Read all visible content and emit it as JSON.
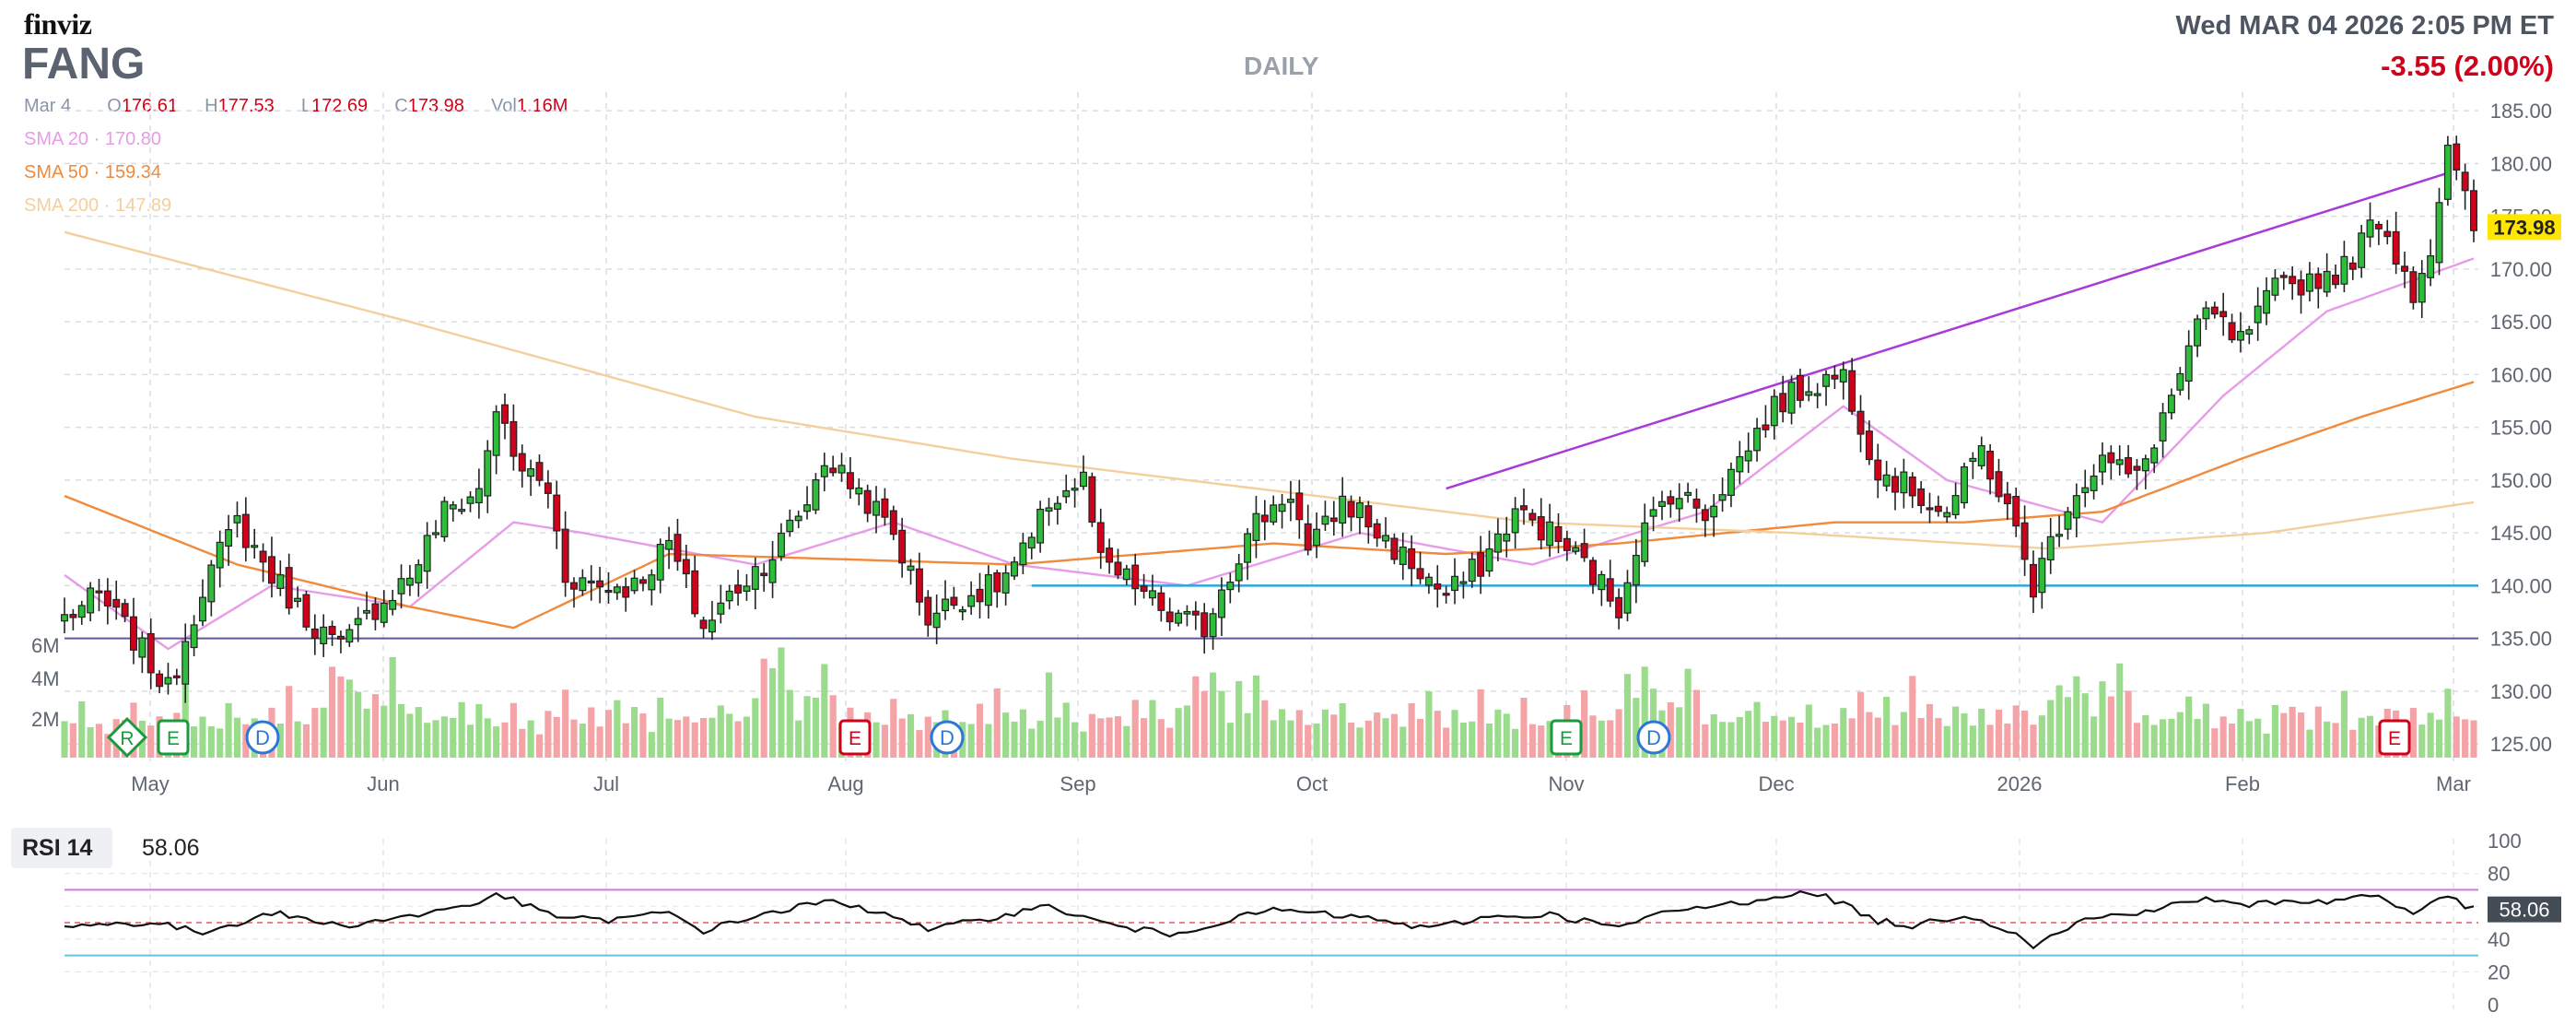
{
  "header": {
    "logo": "finviz",
    "ticker": "FANG",
    "timeframe": "DAILY",
    "datetime": "Wed MAR 04 2026 2:05 PM ET",
    "change": "-3.55 (2.00%)"
  },
  "ohlc": {
    "date": "Mar 4",
    "open_label": "O",
    "open": "176.61",
    "high_label": "H",
    "high": "177.53",
    "low_label": "L",
    "low": "172.69",
    "close_label": "C",
    "close": "173.98",
    "vol_label": "Vol",
    "volume": "1.16M"
  },
  "sma_legend": [
    {
      "label": "SMA 20",
      "value": "170.80",
      "color": "#e79be8"
    },
    {
      "label": "SMA 50",
      "value": "159.34",
      "color": "#f08a3c"
    },
    {
      "label": "SMA 200",
      "value": "147.89",
      "color": "#f4cf9c"
    }
  ],
  "rsi": {
    "label": "RSI 14",
    "value": "58.06"
  },
  "colors": {
    "up": "#2dbd3a",
    "down": "#d0021b",
    "vol_up": "#9bdc8c",
    "vol_down": "#f4a3a6",
    "trendline": "#a93ad8",
    "support": "#2aa6dd",
    "level": "#5f5a97",
    "price_tag": "#ffe600"
  },
  "chart_data": [
    {
      "type": "candlestick",
      "title": "FANG",
      "x_tick_labels": [
        "May",
        "Jun",
        "Jul",
        "Aug",
        "Sep",
        "Oct",
        "Nov",
        "Dec",
        "2026",
        "Feb",
        "Mar"
      ],
      "y_tick_labels": [
        "125.00",
        "130.00",
        "135.00",
        "140.00",
        "145.00",
        "150.00",
        "155.00",
        "160.00",
        "165.00",
        "170.00",
        "175.00",
        "180.00",
        "185.00"
      ],
      "ylim": [
        123,
        186.5
      ],
      "last_price": "173.98",
      "volume_tick_labels": [
        "6M",
        "4M",
        "2M"
      ],
      "price_anchors": [
        [
          0,
          137
        ],
        [
          4,
          139
        ],
        [
          8,
          135
        ],
        [
          12,
          130
        ],
        [
          16,
          140
        ],
        [
          20,
          146
        ],
        [
          24,
          141
        ],
        [
          28,
          137
        ],
        [
          32,
          134
        ],
        [
          36,
          138
        ],
        [
          40,
          141
        ],
        [
          44,
          147
        ],
        [
          48,
          149
        ],
        [
          50,
          157
        ],
        [
          52,
          152
        ],
        [
          56,
          149
        ],
        [
          58,
          141
        ],
        [
          62,
          140
        ],
        [
          66,
          140
        ],
        [
          70,
          144
        ],
        [
          74,
          136
        ],
        [
          78,
          140
        ],
        [
          82,
          143
        ],
        [
          86,
          148
        ],
        [
          88,
          152
        ],
        [
          92,
          149
        ],
        [
          96,
          145
        ],
        [
          100,
          137
        ],
        [
          104,
          139
        ],
        [
          108,
          140
        ],
        [
          112,
          144
        ],
        [
          114,
          148
        ],
        [
          118,
          150
        ],
        [
          120,
          142
        ],
        [
          124,
          140
        ],
        [
          128,
          137
        ],
        [
          132,
          136
        ],
        [
          134,
          140
        ],
        [
          138,
          146
        ],
        [
          142,
          149
        ],
        [
          144,
          143
        ],
        [
          148,
          148
        ],
        [
          150,
          147
        ],
        [
          152,
          145
        ],
        [
          156,
          142
        ],
        [
          160,
          139
        ],
        [
          164,
          142
        ],
        [
          168,
          147
        ],
        [
          172,
          145
        ],
        [
          176,
          142
        ],
        [
          180,
          138
        ],
        [
          182,
          144
        ],
        [
          186,
          149
        ],
        [
          190,
          147
        ],
        [
          194,
          152
        ],
        [
          198,
          157
        ],
        [
          202,
          159
        ],
        [
          206,
          160
        ],
        [
          210,
          151
        ],
        [
          214,
          149
        ],
        [
          218,
          147
        ],
        [
          222,
          153
        ],
        [
          226,
          145
        ],
        [
          228,
          140
        ],
        [
          232,
          148
        ],
        [
          236,
          152
        ],
        [
          240,
          150
        ],
        [
          244,
          158
        ],
        [
          248,
          166
        ],
        [
          252,
          163
        ],
        [
          256,
          168
        ],
        [
          260,
          169
        ],
        [
          264,
          170
        ],
        [
          268,
          175
        ],
        [
          272,
          168
        ],
        [
          274,
          172
        ],
        [
          276,
          181
        ],
        [
          279,
          174
        ]
      ],
      "volume_m": [
        1.3,
        1.1,
        1.7,
        1.2,
        1.4,
        1.0,
        1.6,
        1.3,
        2.1,
        1.5,
        1.2,
        1.8,
        1.1,
        1.4,
        2.5,
        1.2,
        1.6,
        1.3,
        1.0,
        1.9,
        1.4,
        1.2,
        1.5,
        1.1,
        1.7,
        1.3,
        2.2,
        1.4,
        1.2,
        1.6,
        1.8,
        2.9,
        2.6,
        3.4,
        2.1,
        1.5,
        2.4,
        1.9,
        3.0,
        2.2,
        1.3,
        1.6,
        1.1,
        1.5,
        1.2,
        1.4,
        1.9,
        1.3,
        1.7,
        1.2
      ],
      "trendline": [
        [
          160,
          149.2
        ],
        [
          276,
          179.1
        ]
      ],
      "support_level": 140.0,
      "horizontal_level": 135.0,
      "sma": [
        {
          "name": "SMA 20",
          "anchors": [
            [
              0,
              141
            ],
            [
              12,
              134
            ],
            [
              24,
              140
            ],
            [
              40,
              138
            ],
            [
              52,
              146
            ],
            [
              60,
              145
            ],
            [
              80,
              142
            ],
            [
              96,
              146
            ],
            [
              110,
              142
            ],
            [
              130,
              140
            ],
            [
              150,
              145
            ],
            [
              170,
              142
            ],
            [
              190,
              147
            ],
            [
              206,
              157
            ],
            [
              218,
              150
            ],
            [
              236,
              146
            ],
            [
              250,
              158
            ],
            [
              262,
              166
            ],
            [
              279,
              171
            ]
          ]
        },
        {
          "name": "SMA 50",
          "anchors": [
            [
              0,
              148.5
            ],
            [
              20,
              142
            ],
            [
              40,
              138
            ],
            [
              52,
              136
            ],
            [
              70,
              143
            ],
            [
              110,
              142
            ],
            [
              140,
              144
            ],
            [
              160,
              143
            ],
            [
              180,
              144
            ],
            [
              205,
              146
            ],
            [
              220,
              146
            ],
            [
              236,
              147
            ],
            [
              252,
              152
            ],
            [
              266,
              156
            ],
            [
              279,
              159.3
            ]
          ]
        },
        {
          "name": "SMA 200",
          "anchors": [
            [
              0,
              173.5
            ],
            [
              40,
              165
            ],
            [
              80,
              156
            ],
            [
              110,
              152
            ],
            [
              140,
              149
            ],
            [
              170,
              146
            ],
            [
              200,
              145
            ],
            [
              230,
              143.5
            ],
            [
              255,
              145
            ],
            [
              279,
              147.9
            ]
          ]
        }
      ],
      "event_markers": [
        "R",
        "E",
        "D",
        "E",
        "D",
        "E",
        "D",
        "E"
      ]
    },
    {
      "type": "line",
      "title": "RSI 14",
      "ylim": [
        0,
        100
      ],
      "y_tick_labels": [
        "0",
        "20",
        "40",
        "60",
        "80",
        "100"
      ],
      "reference_lines": [
        70,
        50,
        30
      ],
      "last_value": "58.06",
      "anchors": [
        [
          0,
          48
        ],
        [
          10,
          50
        ],
        [
          16,
          44
        ],
        [
          24,
          56
        ],
        [
          32,
          48
        ],
        [
          40,
          54
        ],
        [
          48,
          62
        ],
        [
          50,
          68
        ],
        [
          56,
          55
        ],
        [
          62,
          51
        ],
        [
          70,
          56
        ],
        [
          74,
          45
        ],
        [
          80,
          54
        ],
        [
          88,
          63
        ],
        [
          96,
          55
        ],
        [
          100,
          45
        ],
        [
          108,
          54
        ],
        [
          114,
          60
        ],
        [
          120,
          50
        ],
        [
          124,
          46
        ],
        [
          128,
          43
        ],
        [
          132,
          48
        ],
        [
          140,
          58
        ],
        [
          146,
          55
        ],
        [
          152,
          52
        ],
        [
          158,
          46
        ],
        [
          164,
          53
        ],
        [
          172,
          55
        ],
        [
          180,
          47
        ],
        [
          186,
          57
        ],
        [
          194,
          62
        ],
        [
          200,
          68
        ],
        [
          204,
          66
        ],
        [
          210,
          51
        ],
        [
          214,
          48
        ],
        [
          220,
          55
        ],
        [
          226,
          44
        ],
        [
          228,
          36
        ],
        [
          234,
          52
        ],
        [
          242,
          58
        ],
        [
          248,
          65
        ],
        [
          252,
          60
        ],
        [
          258,
          64
        ],
        [
          262,
          62
        ],
        [
          266,
          67
        ],
        [
          268,
          66
        ],
        [
          272,
          56
        ],
        [
          276,
          66
        ],
        [
          279,
          58
        ]
      ]
    }
  ]
}
